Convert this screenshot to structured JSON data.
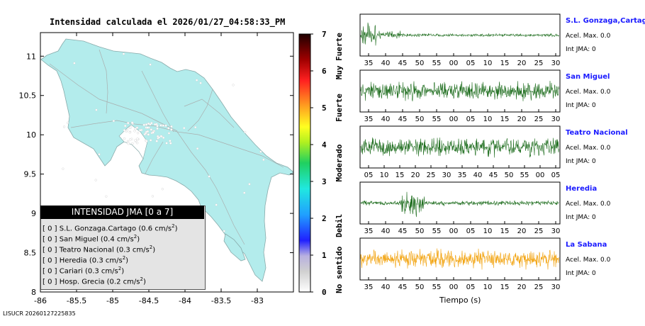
{
  "map": {
    "title": "Intensidad calculada el 2026/01/27_04:58:33_PM",
    "footer": "LISUCR 20260127225835",
    "x_ticks": [
      "-86",
      "-85.5",
      "-85",
      "-84.5",
      "-84",
      "-83.5",
      "-83"
    ],
    "y_ticks": [
      "11",
      "10.5",
      "10",
      "9.5",
      "9",
      "8.5",
      "8"
    ]
  },
  "colorbar": {
    "ticks": [
      "7",
      "6",
      "5",
      "4",
      "3",
      "2",
      "1",
      "0"
    ],
    "categories": [
      "Muy Fuerte",
      "Fuerte",
      "Moderado",
      "Debil",
      "No sentido"
    ]
  },
  "legend": {
    "title": "INTENSIDAD JMA [0 a 7]",
    "rows": [
      {
        "level": "[ 0 ]",
        "name": "S.L. Gonzaga.Cartago",
        "value": "(0.6 cm/s",
        "sup": "2",
        "close": ")"
      },
      {
        "level": "[ 0 ]",
        "name": "San Miguel",
        "value": "(0.4 cm/s",
        "sup": "2",
        "close": ")"
      },
      {
        "level": "[ 0 ]",
        "name": "Teatro Nacional",
        "value": "(0.3 cm/s",
        "sup": "2",
        "close": ")"
      },
      {
        "level": "[ 0 ]",
        "name": "Heredia",
        "value": "(0.3 cm/s",
        "sup": "2",
        "close": ")"
      },
      {
        "level": "[ 0 ]",
        "name": "Cariari",
        "value": "(0.3 cm/s",
        "sup": "2",
        "close": ")"
      },
      {
        "level": "[ 0 ]",
        "name": "Hosp. Grecia",
        "value": "(0.2 cm/s",
        "sup": "2",
        "close": ")"
      }
    ]
  },
  "chart_data": [
    {
      "type": "map",
      "title": "Intensidad calculada el 2026/01/27_04:58:33_PM",
      "xlim": [
        -86,
        -82.5
      ],
      "ylim": [
        8,
        11.3
      ],
      "colorbar_range": [
        0,
        7
      ],
      "legend_title": "INTENSIDAD JMA [0 a 7]",
      "stations": [
        {
          "name": "S.L. Gonzaga.Cartago",
          "jma": 0,
          "pga": 0.6
        },
        {
          "name": "San Miguel",
          "jma": 0,
          "pga": 0.4
        },
        {
          "name": "Teatro Nacional",
          "jma": 0,
          "pga": 0.3
        },
        {
          "name": "Heredia",
          "jma": 0,
          "pga": 0.3
        },
        {
          "name": "Cariari",
          "jma": 0,
          "pga": 0.3
        },
        {
          "name": "Hosp. Grecia",
          "jma": 0,
          "pga": 0.2
        }
      ]
    },
    {
      "type": "line",
      "xlabel": "Tiempo (s)",
      "series": [
        {
          "name": "S.L. Gonzaga,Cartago",
          "acel_label": "Acel. Max. 0.0",
          "int_label": "Int JMA: 0",
          "color": "#1f6e1f",
          "ticks": [
            "35",
            "40",
            "45",
            "50",
            "55",
            "00",
            "05",
            "10",
            "15",
            "20",
            "25",
            "30"
          ],
          "profile": "early"
        },
        {
          "name": "San Miguel",
          "acel_label": "Acel. Max. 0.0",
          "int_label": "Int JMA: 0",
          "color": "#1f6e1f",
          "ticks": [
            "35",
            "40",
            "45",
            "50",
            "55",
            "00",
            "05",
            "10",
            "15",
            "20",
            "25",
            "30"
          ],
          "profile": "noise"
        },
        {
          "name": "Teatro Nacional",
          "acel_label": "Acel. Max. 0.0",
          "int_label": "Int JMA: 0",
          "color": "#1f6e1f",
          "ticks": [
            "05",
            "10",
            "15",
            "20",
            "25",
            "30",
            "35",
            "40",
            "45",
            "50",
            "55",
            "00",
            "05"
          ],
          "profile": "noise"
        },
        {
          "name": "Heredia",
          "acel_label": "Acel. Max. 0.0",
          "int_label": "Int JMA: 0",
          "color": "#1f6e1f",
          "ticks": [
            "35",
            "40",
            "45",
            "50",
            "55",
            "00",
            "05",
            "10",
            "15",
            "20",
            "25",
            "30"
          ],
          "profile": "burst"
        },
        {
          "name": "La Sabana",
          "acel_label": "Acel. Max. 0.0",
          "int_label": "Int JMA: 0",
          "color": "#f2a20c",
          "ticks": [
            "35",
            "40",
            "45",
            "50",
            "55",
            "00",
            "05",
            "10",
            "15",
            "20",
            "25",
            "30"
          ],
          "profile": "noise"
        }
      ]
    }
  ],
  "waveforms": {
    "xlabel": "Tiempo (s)"
  }
}
